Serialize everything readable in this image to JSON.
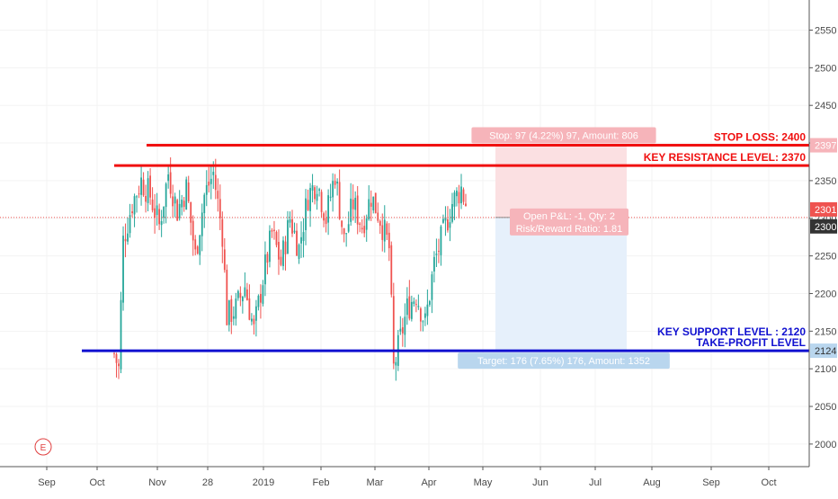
{
  "colors": {
    "up": "#26a69a",
    "down": "#ef5350",
    "stop_line": "#f01010",
    "support_line": "#1010d0",
    "stop_zone": "#fbe0e2",
    "target_zone": "#e6f0fb",
    "last_price": "#ef5350",
    "current_price": "#333333",
    "axis_text": "#4a4a4a",
    "grid": "#f3f3f3"
  },
  "chart_data": {
    "type": "candlestick",
    "symbol": "",
    "x_axis": {
      "tick_labels": [
        "Sep",
        "Oct",
        "Nov",
        "28",
        "2019",
        "Feb",
        "Mar",
        "Apr",
        "May",
        "Jun",
        "Jul",
        "Aug",
        "Sep",
        "Oct"
      ]
    },
    "y_axis": {
      "ylim": [
        1970,
        2590
      ],
      "ticks": [
        2000,
        2050,
        2100,
        2150,
        2200,
        2250,
        2300,
        2350,
        2400,
        2450,
        2500,
        2550
      ],
      "position": "right"
    },
    "price_badges": [
      {
        "value": 2397,
        "label": "2397",
        "role": "stop-loss"
      },
      {
        "value": 2301,
        "label": "2301",
        "role": "last-price"
      },
      {
        "value": 2300,
        "label": "2300",
        "role": "current-price"
      },
      {
        "value": 2124,
        "label": "2124",
        "role": "take-profit"
      }
    ],
    "horizontal_levels": [
      {
        "value": 2397,
        "label": "STOP LOSS: 2400",
        "color": "#f01010"
      },
      {
        "value": 2370,
        "label": "KEY RESISTANCE LEVEL: 2370",
        "color": "#f01010"
      },
      {
        "value": 2124,
        "label": "KEY SUPPORT LEVEL : 2120",
        "label2": "TAKE-PROFIT LEVEL",
        "color": "#1010d0"
      }
    ],
    "position_tool": {
      "entry": 2301,
      "stop": 2397,
      "target": 2124,
      "stop_label": "Stop: 97 (4.22%) 97, Amount: 806",
      "open_label": "Open P&L: -1, Qty: 2",
      "ratio_label": "Risk/Reward Ratio: 1.81",
      "target_label": "Target: 176 (7.65%) 176, Amount: 1352"
    },
    "earnings_marker": "E",
    "series_anchor_points": [
      [
        0,
        2120
      ],
      [
        2,
        2100
      ],
      [
        4,
        2270
      ],
      [
        8,
        2320
      ],
      [
        12,
        2350
      ],
      [
        16,
        2330
      ],
      [
        20,
        2290
      ],
      [
        24,
        2360
      ],
      [
        28,
        2310
      ],
      [
        32,
        2340
      ],
      [
        36,
        2250
      ],
      [
        40,
        2330
      ],
      [
        44,
        2360
      ],
      [
        48,
        2280
      ],
      [
        50,
        2170
      ],
      [
        54,
        2180
      ],
      [
        58,
        2210
      ],
      [
        62,
        2150
      ],
      [
        66,
        2220
      ],
      [
        70,
        2280
      ],
      [
        74,
        2240
      ],
      [
        78,
        2300
      ],
      [
        82,
        2260
      ],
      [
        86,
        2330
      ],
      [
        90,
        2350
      ],
      [
        94,
        2300
      ],
      [
        98,
        2360
      ],
      [
        102,
        2270
      ],
      [
        106,
        2320
      ],
      [
        110,
        2290
      ],
      [
        114,
        2330
      ],
      [
        118,
        2300
      ],
      [
        122,
        2260
      ],
      [
        124,
        2100
      ],
      [
        127,
        2140
      ],
      [
        130,
        2180
      ],
      [
        134,
        2200
      ],
      [
        138,
        2160
      ],
      [
        142,
        2240
      ],
      [
        146,
        2280
      ],
      [
        150,
        2320
      ],
      [
        154,
        2340
      ],
      [
        156,
        2320
      ]
    ]
  }
}
